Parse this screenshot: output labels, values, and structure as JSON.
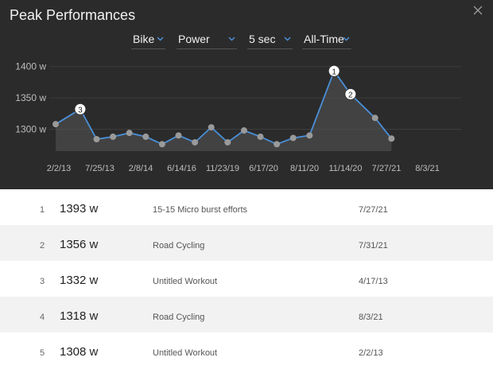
{
  "panel": {
    "title": "Peak Performances",
    "close_icon": "close-icon"
  },
  "filters": {
    "sport": "Bike",
    "metric": "Power",
    "duration": "5 sec",
    "range": "All-Time",
    "chevron_icon": "chevron-down-icon",
    "chevron_color": "#4a90d9"
  },
  "chart_data": {
    "type": "area",
    "line_color": "#4a90d9",
    "fill_color": "#555555",
    "point_color": "#9a9a9a",
    "y_ticks": [
      "1300 w",
      "1350 w",
      "1400 w"
    ],
    "ylim": [
      1265,
      1420
    ],
    "x_tick_labels": [
      "2/2/13",
      "7/25/13",
      "2/8/14",
      "6/14/16",
      "11/23/19",
      "6/17/20",
      "8/11/20",
      "11/14/20",
      "7/27/21",
      "8/3/21"
    ],
    "x_tick_positions": [
      0,
      2.5,
      5,
      7.5,
      10,
      12.5,
      15,
      17.5,
      20,
      22.5
    ],
    "values": [
      1308,
      1332,
      1284,
      1288,
      1294,
      1288,
      1276,
      1290,
      1279,
      1303,
      1279,
      1298,
      1288,
      1276,
      1286,
      1290,
      1393,
      1356,
      1318,
      1285
    ],
    "x_positions": [
      0,
      1.5,
      2.5,
      3.5,
      4.5,
      5.5,
      6.5,
      7.5,
      8.5,
      9.5,
      10.5,
      11.5,
      12.5,
      13.5,
      14.5,
      15.5,
      17,
      18,
      19.5,
      20.5
    ],
    "labeled_points": [
      {
        "index": 16,
        "label": "1"
      },
      {
        "index": 17,
        "label": "2"
      },
      {
        "index": 1,
        "label": "3"
      }
    ],
    "grid": true
  },
  "list": {
    "rows": [
      {
        "rank": "1",
        "value": "1393 w",
        "workout": "15-15 Micro burst efforts",
        "date": "7/27/21"
      },
      {
        "rank": "2",
        "value": "1356 w",
        "workout": "Road Cycling",
        "date": "7/31/21"
      },
      {
        "rank": "3",
        "value": "1332 w",
        "workout": "Untitled Workout",
        "date": "4/17/13"
      },
      {
        "rank": "4",
        "value": "1318 w",
        "workout": "Road Cycling",
        "date": "8/3/21"
      },
      {
        "rank": "5",
        "value": "1308 w",
        "workout": "Untitled Workout",
        "date": "2/2/13"
      }
    ]
  }
}
